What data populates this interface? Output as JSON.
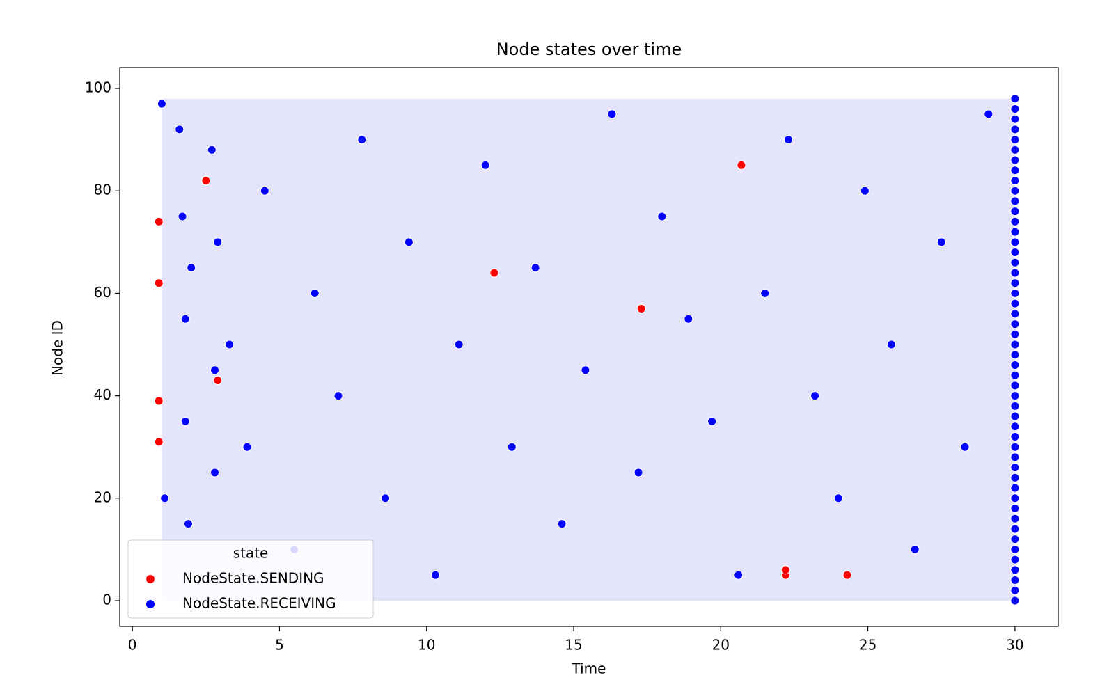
{
  "chart_data": {
    "type": "scatter",
    "title": "Node states over time",
    "x_label": "Time",
    "y_label": "Node ID",
    "xlim": [
      -0.43,
      31.47
    ],
    "ylim": [
      -5.03,
      104.08
    ],
    "xticks": [
      0,
      5,
      10,
      15,
      20,
      25,
      30
    ],
    "yticks": [
      0,
      20,
      40,
      60,
      80,
      100
    ],
    "legend_title": "state",
    "legend_location": "lower left",
    "grid": false,
    "series": [
      {
        "name": "NodeState.SENDING",
        "color": "red",
        "x": [
          0.9,
          0.9,
          0.9,
          0.9,
          2.5,
          2.9,
          22.2,
          22.2,
          20.7,
          12.3,
          17.3,
          24.3
        ],
        "values": [
          74,
          62,
          39,
          31,
          82,
          43,
          5,
          6,
          85,
          64,
          57,
          5
        ]
      },
      {
        "name": "NodeState.RECEIVING",
        "color": "blue",
        "x": [
          1.0,
          1.1,
          1.6,
          1.7,
          1.8,
          1.8,
          1.9,
          2.0,
          2.7,
          2.8,
          2.9,
          2.8,
          3.3,
          3.9,
          4.5,
          5.5,
          6.2,
          7.0,
          7.8,
          8.6,
          9.4,
          10.3,
          11.1,
          12.0,
          12.9,
          13.7,
          14.6,
          15.4,
          16.3,
          17.2,
          18.0,
          18.9,
          19.7,
          20.6,
          21.5,
          22.3,
          23.2,
          24.0,
          24.9,
          25.8,
          26.6,
          27.5,
          28.3,
          29.1,
          30,
          30,
          30,
          30,
          30,
          30,
          30,
          30,
          30,
          30,
          30,
          30,
          30,
          30,
          30,
          30,
          30,
          30,
          30,
          30,
          30,
          30,
          30,
          30,
          30,
          30,
          30,
          30,
          30,
          30,
          30,
          30,
          30,
          30,
          30,
          30,
          30,
          30,
          30,
          30,
          30,
          30,
          30,
          30,
          30,
          30,
          30,
          30,
          30,
          30
        ],
        "values": [
          97,
          20,
          92,
          75,
          55,
          35,
          15,
          65,
          88,
          45,
          70,
          25,
          50,
          30,
          80,
          10,
          60,
          40,
          90,
          20,
          70,
          5,
          50,
          85,
          30,
          65,
          15,
          45,
          95,
          25,
          75,
          55,
          35,
          5,
          60,
          90,
          40,
          20,
          80,
          50,
          10,
          70,
          30,
          95,
          0,
          2,
          4,
          6,
          8,
          10,
          12,
          14,
          16,
          18,
          20,
          22,
          24,
          26,
          28,
          30,
          32,
          34,
          36,
          38,
          40,
          42,
          44,
          46,
          48,
          50,
          52,
          54,
          56,
          58,
          60,
          62,
          64,
          66,
          68,
          70,
          72,
          74,
          76,
          78,
          80,
          82,
          84,
          86,
          88,
          90,
          92,
          94,
          96,
          98
        ]
      }
    ]
  }
}
